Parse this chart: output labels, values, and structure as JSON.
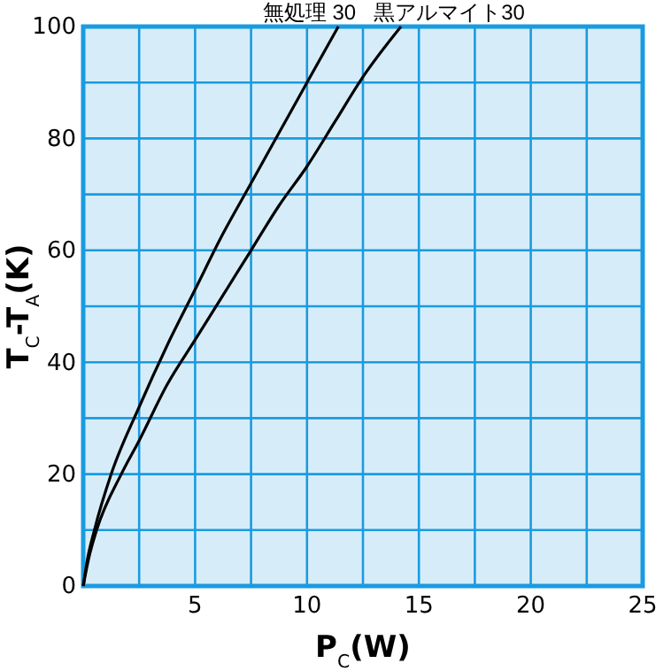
{
  "chart_data": {
    "type": "line",
    "xlabel": "P$_{C}$(W)",
    "ylabel": "T$_{C}$-T$_{A}$(K)",
    "xlim": [
      0,
      25
    ],
    "ylim": [
      0,
      100
    ],
    "xticks": [
      {
        "value": 2.5,
        "label": null
      },
      5,
      {
        "value": 7.5,
        "label": null
      },
      10,
      {
        "value": 12.5,
        "label": null
      },
      15,
      {
        "value": 17.5,
        "label": null
      },
      20,
      {
        "value": 22.5,
        "label": null
      },
      25
    ],
    "yticks": [
      0,
      {
        "value": 10,
        "label": null
      },
      20,
      {
        "value": 30,
        "label": null
      },
      40,
      {
        "value": 50,
        "label": null
      },
      60,
      {
        "value": 70,
        "label": null
      },
      80,
      {
        "value": 90,
        "label": null
      },
      100
    ],
    "grid": true,
    "marker": "none",
    "line_style": "solid",
    "series": [
      {
        "name": "無処理 30",
        "color": "#000000",
        "x": [
          0,
          0.2,
          0.5,
          1.25,
          2.5,
          3.75,
          5,
          6.25,
          7.5,
          8.75,
          10,
          11.4
        ],
        "values": [
          0,
          5,
          10,
          20,
          32,
          43,
          53,
          63,
          72,
          81,
          90,
          100
        ]
      },
      {
        "name": "黒アルマイト30",
        "color": "#000000",
        "x": [
          0,
          0.25,
          0.6,
          1.7,
          2.5,
          3.75,
          5,
          6.25,
          7.5,
          8.75,
          10,
          11.25,
          12.5,
          14.2
        ],
        "values": [
          0,
          5,
          10,
          20,
          26,
          36,
          44,
          52,
          60,
          68,
          75,
          83,
          91,
          100
        ]
      }
    ]
  }
}
